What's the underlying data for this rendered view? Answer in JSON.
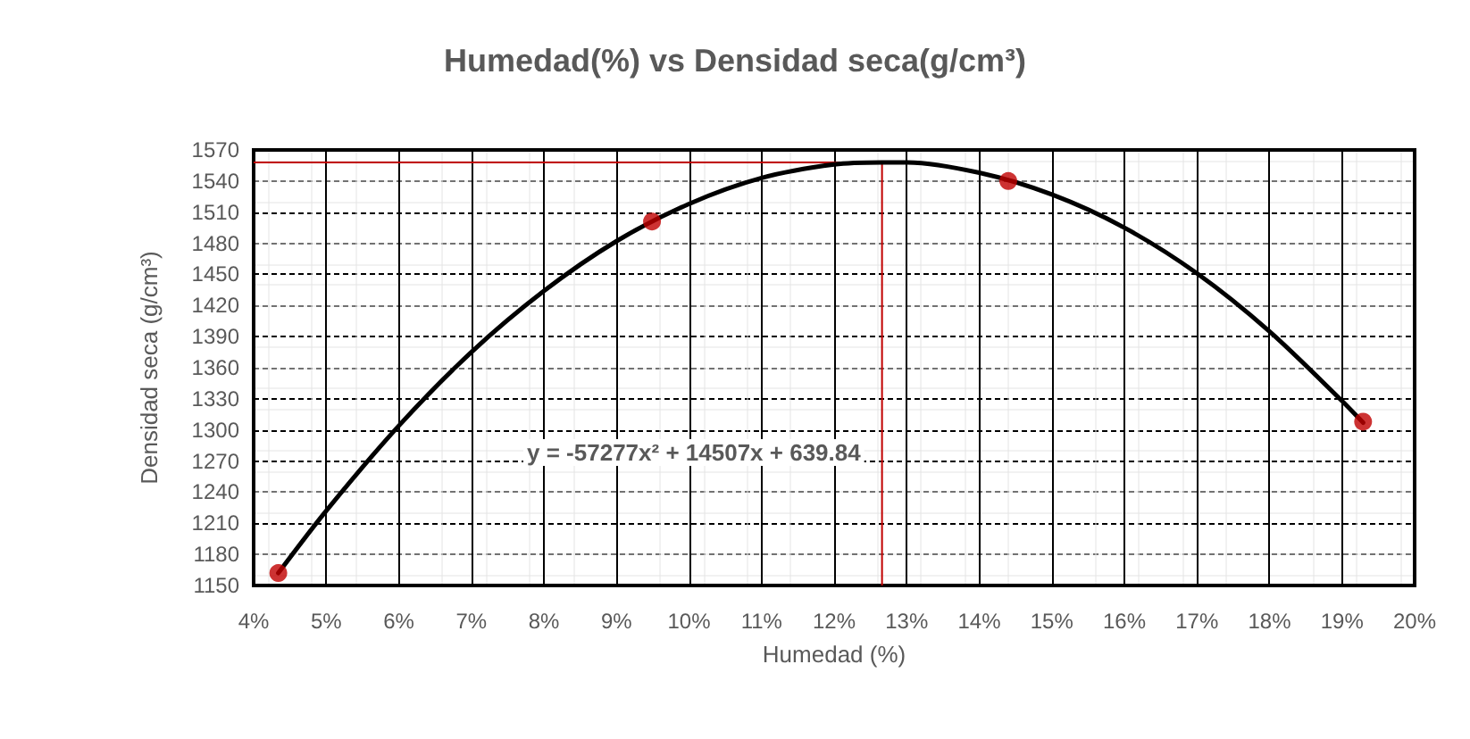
{
  "chart_data": {
    "type": "scatter",
    "title": "Humedad(%) vs Densidad seca(g/cm³)",
    "xlabel": "Humedad (%)",
    "ylabel": "Densidad seca (g/cm³)",
    "annotations": [
      "y = -57277x² + 14507x + 639.84"
    ],
    "series": [
      {
        "color": "#c00000",
        "marker": "circle",
        "x": [
          0.0434,
          0.0949,
          0.144,
          0.1929
        ],
        "values": [
          1162,
          1501,
          1540,
          1308
        ]
      },
      {
        "type": "line",
        "color": "#000000",
        "marker": "none",
        "line_style": "solid",
        "x": [
          0.0434,
          0.05,
          0.06,
          0.07,
          0.08,
          0.09,
          0.1,
          0.11,
          0.12,
          0.1266,
          0.13,
          0.14,
          0.15,
          0.16,
          0.17,
          0.18,
          0.19,
          0.1929
        ],
        "values": [
          1162,
          1222,
          1304,
          1375,
          1434,
          1482,
          1518,
          1543,
          1556,
          1558,
          1558,
          1548,
          1527,
          1495,
          1451,
          1395,
          1328,
          1307
        ]
      }
    ],
    "ref_lines": [
      {
        "axis": "x",
        "value": 0.1266,
        "color": "#c00000"
      },
      {
        "axis": "y",
        "value": 1558,
        "color": "#c00000"
      }
    ],
    "xlim": [
      0.04,
      0.2
    ],
    "xticks": [
      {
        "value": 0.04,
        "label": "4%"
      },
      {
        "value": 0.05,
        "label": "5%"
      },
      {
        "value": 0.06,
        "label": "6%"
      },
      {
        "value": 0.07,
        "label": "7%"
      },
      {
        "value": 0.08,
        "label": "8%"
      },
      {
        "value": 0.09,
        "label": "9%"
      },
      {
        "value": 0.1,
        "label": "10%"
      },
      {
        "value": 0.11,
        "label": "11%"
      },
      {
        "value": 0.12,
        "label": "12%"
      },
      {
        "value": 0.13,
        "label": "13%"
      },
      {
        "value": 0.14,
        "label": "14%"
      },
      {
        "value": 0.15,
        "label": "15%"
      },
      {
        "value": 0.16,
        "label": "16%"
      },
      {
        "value": 0.17,
        "label": "17%"
      },
      {
        "value": 0.18,
        "label": "18%"
      },
      {
        "value": 0.19,
        "label": "19%"
      },
      {
        "value": 0.2,
        "label": "20%"
      }
    ],
    "ylim": [
      1150,
      1570
    ],
    "yticks": [
      1150,
      1180,
      1210,
      1240,
      1270,
      1300,
      1330,
      1360,
      1390,
      1420,
      1450,
      1480,
      1510,
      1540,
      1570
    ],
    "grid": true
  }
}
